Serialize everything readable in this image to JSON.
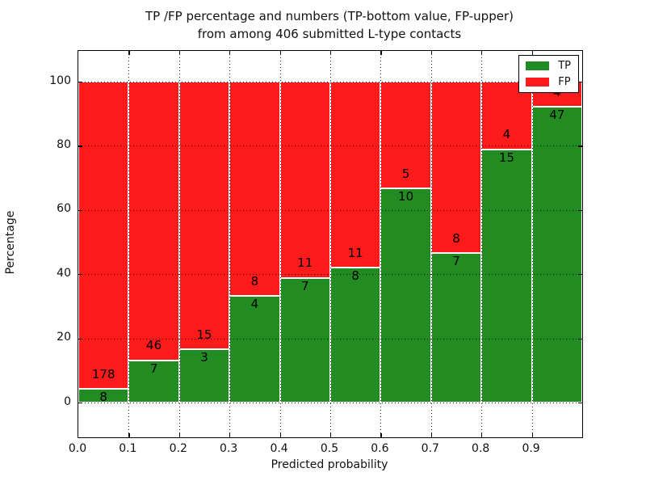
{
  "chart_data": {
    "type": "bar",
    "stacked": true,
    "normalized_to": 100,
    "title": "TP /FP percentage and numbers (TP-bottom value, FP-upper)",
    "subtitle": "from among 406 submitted L-type contacts",
    "xlabel": "Predicted probability",
    "ylabel": "Percentage",
    "x_tick_labels": [
      "0.0",
      "0.1",
      "0.2",
      "0.3",
      "0.4",
      "0.5",
      "0.6",
      "0.7",
      "0.8",
      "0.9"
    ],
    "y_tick_labels": [
      "0",
      "20",
      "40",
      "60",
      "80",
      "100"
    ],
    "y_tick_values": [
      0,
      20,
      40,
      60,
      80,
      100
    ],
    "xlim": [
      0.0,
      1.0
    ],
    "ylim": [
      -10.8,
      109.6
    ],
    "bin_width": 0.1,
    "grid": "dotted, both axes, drawn over bars",
    "legend_position": "upper right",
    "series": [
      {
        "name": "TP",
        "color": "#228b22",
        "position": "bottom",
        "counts": [
          8,
          7,
          3,
          4,
          7,
          8,
          10,
          7,
          15,
          47
        ]
      },
      {
        "name": "FP",
        "color": "#fc1a1a",
        "position": "top",
        "counts": [
          178,
          46,
          15,
          8,
          11,
          11,
          5,
          8,
          4,
          4
        ]
      }
    ],
    "bins": [
      {
        "x0": 0.0,
        "tp": 8,
        "fp": 178
      },
      {
        "x0": 0.1,
        "tp": 7,
        "fp": 46
      },
      {
        "x0": 0.2,
        "tp": 3,
        "fp": 15
      },
      {
        "x0": 0.3,
        "tp": 4,
        "fp": 8
      },
      {
        "x0": 0.4,
        "tp": 7,
        "fp": 11
      },
      {
        "x0": 0.5,
        "tp": 8,
        "fp": 11
      },
      {
        "x0": 0.6,
        "tp": 10,
        "fp": 5
      },
      {
        "x0": 0.7,
        "tp": 7,
        "fp": 8
      },
      {
        "x0": 0.8,
        "tp": 15,
        "fp": 4
      },
      {
        "x0": 0.9,
        "tp": 47,
        "fp": 4
      }
    ],
    "total_contacts": 406,
    "bar_edge_color": "#ffffff"
  }
}
